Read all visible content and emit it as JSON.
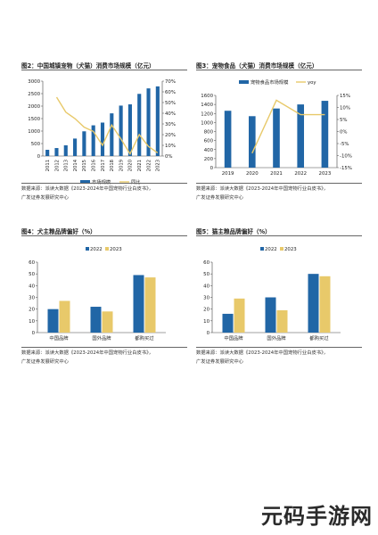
{
  "charts": [
    {
      "title": "图2：中国城镇宠物（犬猫）消费市场规模（亿元）",
      "source": [
        "数据来源：派读大数据《2023-2024年中国宠物行业白皮书》，",
        "广发证券发展研究中心"
      ]
    },
    {
      "title": "图3：宠物食品（犬猫）消费市场规模（亿元）",
      "source": [
        "数据来源：派读大数据《2023-2024年中国宠物行业白皮书》，",
        "广发证券发展研究中心"
      ]
    },
    {
      "title": "图4：犬主粮品牌偏好（%）",
      "source": [
        "数据来源：派读大数据《2023-2024年中国宠物行业白皮书》，",
        "广发证券发展研究中心"
      ]
    },
    {
      "title": "图5：猫主粮品牌偏好（%）",
      "source": [
        "数据来源：派读大数据《2023-2024年中国宠物行业白皮书》，",
        "广发证券发展研究中心"
      ]
    }
  ],
  "colors": {
    "bar": "#2166a6",
    "line": "#e8c96a",
    "s2022": "#2166a6",
    "s2023": "#e8c96a"
  },
  "chart_data": [
    {
      "type": "bar",
      "categories": [
        "2011",
        "2012",
        "2013",
        "2014",
        "2015",
        "2016",
        "2017",
        "2018",
        "2019",
        "2020",
        "2021",
        "2022",
        "2023"
      ],
      "series": [
        {
          "name": "市场规模",
          "kind": "bar",
          "axis": "left",
          "values": [
            250,
            320,
            430,
            700,
            990,
            1230,
            1340,
            1710,
            2020,
            2070,
            2490,
            2710,
            2790
          ]
        },
        {
          "name": "同比",
          "kind": "line",
          "axis": "right",
          "values": [
            null,
            55,
            41,
            35,
            27,
            23,
            10,
            29,
            16,
            2,
            20,
            9,
            3
          ]
        }
      ],
      "ylim": [
        0,
        3000
      ],
      "yticks": [
        0,
        500,
        1000,
        1500,
        2000,
        2500,
        3000
      ],
      "y2lim": [
        0,
        70
      ],
      "y2ticks": [
        "0%",
        "10%",
        "20%",
        "30%",
        "40%",
        "50%",
        "60%",
        "70%"
      ],
      "legend": "bottom"
    },
    {
      "type": "bar",
      "categories": [
        "2019",
        "2020",
        "2021",
        "2022",
        "2023"
      ],
      "series": [
        {
          "name": "宠物食品市场规模",
          "kind": "bar",
          "axis": "left",
          "values": [
            1260,
            1140,
            1310,
            1400,
            1480
          ]
        },
        {
          "name": "yoy",
          "kind": "line",
          "axis": "right",
          "values": [
            null,
            -9,
            13,
            7,
            7
          ]
        }
      ],
      "ylim": [
        0,
        1600
      ],
      "yticks": [
        0,
        200,
        400,
        600,
        800,
        1000,
        1200,
        1400,
        1600
      ],
      "y2lim": [
        -15,
        15
      ],
      "y2ticks": [
        "-15%",
        "-10%",
        "-5%",
        "0%",
        "5%",
        "10%",
        "15%"
      ],
      "legend": "top"
    },
    {
      "type": "bar",
      "categories": [
        "中国品牌",
        "国外品牌",
        "都购买过"
      ],
      "series": [
        {
          "name": "2022",
          "values": [
            20,
            22,
            49
          ]
        },
        {
          "name": "2023",
          "values": [
            27,
            18,
            47
          ]
        }
      ],
      "ylim": [
        0,
        60
      ],
      "yticks": [
        0,
        10,
        20,
        30,
        40,
        50,
        60
      ],
      "legend": "top"
    },
    {
      "type": "bar",
      "categories": [
        "中国品牌",
        "国外品牌",
        "都购买过"
      ],
      "series": [
        {
          "name": "2022",
          "values": [
            16,
            30,
            50
          ]
        },
        {
          "name": "2023",
          "values": [
            29,
            19,
            48
          ]
        }
      ],
      "ylim": [
        0,
        60
      ],
      "yticks": [
        0,
        10,
        20,
        30,
        40,
        50,
        60
      ],
      "legend": "top"
    }
  ],
  "watermark": "元码手游网"
}
